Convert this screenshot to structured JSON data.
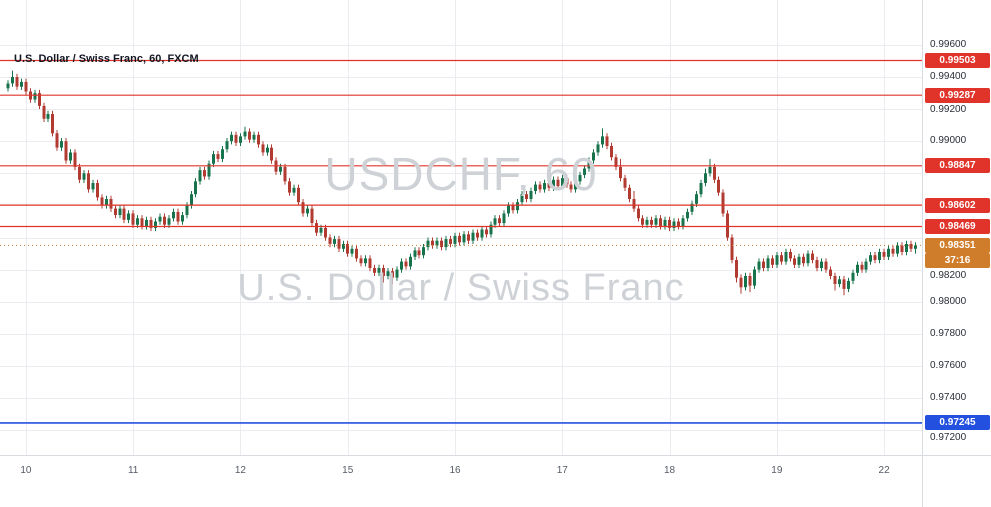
{
  "legend": {
    "text": "U.S. Dollar / Swiss Franc, 60, FXCM"
  },
  "watermark": {
    "line1": "USDCHF, 60",
    "line2": "U.S. Dollar / Swiss Franc"
  },
  "colors": {
    "up_candle": "#17734b",
    "down_candle": "#b23b31",
    "grid": "#ececf0",
    "resistance_line": "#e0342b",
    "support_line": "#2450e0",
    "current_price": "#cf7d2a",
    "axis_text": "#2a2e39"
  },
  "chart_data": {
    "type": "candlestick",
    "symbol": "USDCHF",
    "interval": "60",
    "exchange": "FXCM",
    "title": "U.S. Dollar / Swiss Franc, 60, FXCM",
    "price_axis": {
      "min": 0.97045,
      "max": 0.9988,
      "grid_start": 0.996,
      "grid_step": 0.002,
      "grid_end": 0.972,
      "ticks": [
        0.996,
        0.994,
        0.992,
        0.99,
        0.982,
        0.98,
        0.978,
        0.976,
        0.974,
        0.972
      ]
    },
    "time_axis": {
      "labels": [
        "10",
        "11",
        "12",
        "15",
        "16",
        "17",
        "18",
        "19",
        "22"
      ],
      "indices": [
        4,
        28,
        52,
        76,
        100,
        124,
        148,
        172,
        196
      ]
    },
    "levels": [
      {
        "price": 0.99503,
        "kind": "resistance"
      },
      {
        "price": 0.99287,
        "kind": "resistance"
      },
      {
        "price": 0.98847,
        "kind": "resistance"
      },
      {
        "price": 0.98602,
        "kind": "resistance"
      },
      {
        "price": 0.98469,
        "kind": "resistance"
      },
      {
        "price": 0.97245,
        "kind": "support"
      }
    ],
    "last_price": {
      "value": 0.98351,
      "countdown": "37:16"
    },
    "candles": [
      [
        0.9933,
        0.9938,
        0.9931,
        0.9936
      ],
      [
        0.9936,
        0.9944,
        0.9934,
        0.994
      ],
      [
        0.994,
        0.9942,
        0.9932,
        0.9934
      ],
      [
        0.9934,
        0.9939,
        0.9932,
        0.9937
      ],
      [
        0.9937,
        0.9939,
        0.9929,
        0.9931
      ],
      [
        0.9931,
        0.9933,
        0.9924,
        0.9926
      ],
      [
        0.9926,
        0.9932,
        0.9924,
        0.993
      ],
      [
        0.993,
        0.9932,
        0.992,
        0.9922
      ],
      [
        0.9922,
        0.9924,
        0.9912,
        0.9914
      ],
      [
        0.9914,
        0.9919,
        0.9912,
        0.9917
      ],
      [
        0.9917,
        0.9919,
        0.9903,
        0.9905
      ],
      [
        0.9905,
        0.9907,
        0.9894,
        0.9896
      ],
      [
        0.9896,
        0.9902,
        0.9894,
        0.99
      ],
      [
        0.99,
        0.9902,
        0.9886,
        0.9888
      ],
      [
        0.9888,
        0.9895,
        0.9886,
        0.9893
      ],
      [
        0.9893,
        0.9895,
        0.9882,
        0.9884
      ],
      [
        0.9884,
        0.9886,
        0.9874,
        0.9876
      ],
      [
        0.9876,
        0.9882,
        0.9874,
        0.988
      ],
      [
        0.988,
        0.9882,
        0.9868,
        0.987
      ],
      [
        0.987,
        0.9876,
        0.9868,
        0.9874
      ],
      [
        0.9874,
        0.9876,
        0.9863,
        0.9865
      ],
      [
        0.9865,
        0.9867,
        0.9858,
        0.986
      ],
      [
        0.986,
        0.9866,
        0.9858,
        0.9864
      ],
      [
        0.9864,
        0.9866,
        0.9856,
        0.9858
      ],
      [
        0.9858,
        0.986,
        0.9852,
        0.9854
      ],
      [
        0.9854,
        0.986,
        0.9852,
        0.9858
      ],
      [
        0.9858,
        0.986,
        0.9849,
        0.9851
      ],
      [
        0.9851,
        0.9857,
        0.9849,
        0.9855
      ],
      [
        0.9855,
        0.9857,
        0.9846,
        0.9848
      ],
      [
        0.9848,
        0.9854,
        0.9846,
        0.9852
      ],
      [
        0.9852,
        0.9854,
        0.9845,
        0.9847
      ],
      [
        0.9847,
        0.9853,
        0.9845,
        0.9851
      ],
      [
        0.9851,
        0.9853,
        0.9844,
        0.9846
      ],
      [
        0.9846,
        0.9852,
        0.9844,
        0.985
      ],
      [
        0.985,
        0.9855,
        0.9848,
        0.9853
      ],
      [
        0.9853,
        0.9855,
        0.9846,
        0.9848
      ],
      [
        0.9848,
        0.9854,
        0.9846,
        0.9852
      ],
      [
        0.9852,
        0.9858,
        0.985,
        0.9856
      ],
      [
        0.9856,
        0.9858,
        0.9848,
        0.985
      ],
      [
        0.985,
        0.9856,
        0.9848,
        0.9854
      ],
      [
        0.9854,
        0.9862,
        0.9852,
        0.986
      ],
      [
        0.986,
        0.9869,
        0.9858,
        0.9867
      ],
      [
        0.9867,
        0.9877,
        0.9865,
        0.9875
      ],
      [
        0.9875,
        0.9884,
        0.9873,
        0.9882
      ],
      [
        0.9882,
        0.9884,
        0.9876,
        0.9878
      ],
      [
        0.9878,
        0.9888,
        0.9876,
        0.9886
      ],
      [
        0.9886,
        0.9894,
        0.9884,
        0.9892
      ],
      [
        0.9892,
        0.9894,
        0.9887,
        0.9889
      ],
      [
        0.9889,
        0.9897,
        0.9887,
        0.9895
      ],
      [
        0.9895,
        0.9902,
        0.9893,
        0.99
      ],
      [
        0.99,
        0.9906,
        0.9898,
        0.9904
      ],
      [
        0.9904,
        0.9906,
        0.9897,
        0.9899
      ],
      [
        0.9899,
        0.9905,
        0.9897,
        0.9903
      ],
      [
        0.9903,
        0.9909,
        0.9901,
        0.9906
      ],
      [
        0.9906,
        0.9908,
        0.9899,
        0.9901
      ],
      [
        0.9901,
        0.9906,
        0.9899,
        0.9904
      ],
      [
        0.9904,
        0.9906,
        0.9896,
        0.9898
      ],
      [
        0.9898,
        0.99,
        0.9891,
        0.9893
      ],
      [
        0.9893,
        0.9898,
        0.9891,
        0.9896
      ],
      [
        0.9896,
        0.9898,
        0.9886,
        0.9888
      ],
      [
        0.9888,
        0.989,
        0.9879,
        0.9881
      ],
      [
        0.9881,
        0.9886,
        0.9879,
        0.9884
      ],
      [
        0.9884,
        0.9886,
        0.9873,
        0.9875
      ],
      [
        0.9875,
        0.9877,
        0.9866,
        0.9868
      ],
      [
        0.9868,
        0.9873,
        0.9866,
        0.9871
      ],
      [
        0.9871,
        0.9873,
        0.986,
        0.9862
      ],
      [
        0.9862,
        0.9864,
        0.9853,
        0.9855
      ],
      [
        0.9855,
        0.986,
        0.9853,
        0.9858
      ],
      [
        0.9858,
        0.986,
        0.9847,
        0.9849
      ],
      [
        0.9849,
        0.9851,
        0.9841,
        0.9843
      ],
      [
        0.9843,
        0.9848,
        0.9841,
        0.9846
      ],
      [
        0.9846,
        0.9848,
        0.9838,
        0.984
      ],
      [
        0.984,
        0.9842,
        0.9834,
        0.9836
      ],
      [
        0.9836,
        0.9841,
        0.9834,
        0.9839
      ],
      [
        0.9839,
        0.9841,
        0.9831,
        0.9833
      ],
      [
        0.9833,
        0.9838,
        0.9831,
        0.9836
      ],
      [
        0.9836,
        0.9838,
        0.9828,
        0.983
      ],
      [
        0.983,
        0.9835,
        0.9828,
        0.9833
      ],
      [
        0.9833,
        0.9835,
        0.9825,
        0.9827
      ],
      [
        0.9827,
        0.9829,
        0.9822,
        0.9824
      ],
      [
        0.9824,
        0.9829,
        0.9822,
        0.9827
      ],
      [
        0.9827,
        0.9829,
        0.9819,
        0.9821
      ],
      [
        0.9821,
        0.9823,
        0.9816,
        0.9818
      ],
      [
        0.9818,
        0.9823,
        0.9816,
        0.9821
      ],
      [
        0.9821,
        0.9823,
        0.9812,
        0.9816
      ],
      [
        0.9816,
        0.9821,
        0.9814,
        0.9819
      ],
      [
        0.9819,
        0.9821,
        0.9811,
        0.9815
      ],
      [
        0.9815,
        0.9822,
        0.9813,
        0.982
      ],
      [
        0.982,
        0.9827,
        0.9818,
        0.9825
      ],
      [
        0.9825,
        0.9827,
        0.982,
        0.9822
      ],
      [
        0.9822,
        0.983,
        0.982,
        0.9828
      ],
      [
        0.9828,
        0.9834,
        0.9826,
        0.9832
      ],
      [
        0.9832,
        0.9834,
        0.9827,
        0.9829
      ],
      [
        0.9829,
        0.9836,
        0.9827,
        0.9834
      ],
      [
        0.9834,
        0.984,
        0.9832,
        0.9838
      ],
      [
        0.9838,
        0.984,
        0.9833,
        0.9835
      ],
      [
        0.9835,
        0.984,
        0.9833,
        0.9838
      ],
      [
        0.9838,
        0.984,
        0.9832,
        0.9834
      ],
      [
        0.9834,
        0.9841,
        0.9832,
        0.9839
      ],
      [
        0.9839,
        0.9841,
        0.9834,
        0.9836
      ],
      [
        0.9836,
        0.9843,
        0.9834,
        0.9841
      ],
      [
        0.9841,
        0.9843,
        0.9835,
        0.9837
      ],
      [
        0.9837,
        0.9844,
        0.9835,
        0.9842
      ],
      [
        0.9842,
        0.9844,
        0.9836,
        0.9838
      ],
      [
        0.9838,
        0.9845,
        0.9836,
        0.9843
      ],
      [
        0.9843,
        0.9845,
        0.9838,
        0.984
      ],
      [
        0.984,
        0.9847,
        0.9838,
        0.9845
      ],
      [
        0.9845,
        0.9847,
        0.984,
        0.9842
      ],
      [
        0.9842,
        0.985,
        0.984,
        0.9848
      ],
      [
        0.9848,
        0.9854,
        0.9846,
        0.9852
      ],
      [
        0.9852,
        0.9854,
        0.9847,
        0.9849
      ],
      [
        0.9849,
        0.9857,
        0.9847,
        0.9855
      ],
      [
        0.9855,
        0.9862,
        0.9853,
        0.986
      ],
      [
        0.986,
        0.9862,
        0.9855,
        0.9857
      ],
      [
        0.9857,
        0.9864,
        0.9855,
        0.9862
      ],
      [
        0.9862,
        0.9869,
        0.986,
        0.9867
      ],
      [
        0.9867,
        0.9869,
        0.9862,
        0.9864
      ],
      [
        0.9864,
        0.9871,
        0.9862,
        0.9869
      ],
      [
        0.9869,
        0.9875,
        0.9867,
        0.9873
      ],
      [
        0.9873,
        0.9875,
        0.9868,
        0.987
      ],
      [
        0.987,
        0.9876,
        0.9868,
        0.9874
      ],
      [
        0.9874,
        0.9876,
        0.9869,
        0.9871
      ],
      [
        0.9871,
        0.9878,
        0.9869,
        0.9876
      ],
      [
        0.9876,
        0.9878,
        0.987,
        0.9872
      ],
      [
        0.9872,
        0.9879,
        0.987,
        0.9877
      ],
      [
        0.9877,
        0.9879,
        0.9871,
        0.9873
      ],
      [
        0.9873,
        0.9875,
        0.9868,
        0.987
      ],
      [
        0.987,
        0.9877,
        0.9868,
        0.9875
      ],
      [
        0.9875,
        0.9881,
        0.9873,
        0.9879
      ],
      [
        0.9879,
        0.9885,
        0.9877,
        0.9883
      ],
      [
        0.9883,
        0.989,
        0.9881,
        0.9888
      ],
      [
        0.9888,
        0.9895,
        0.9886,
        0.9893
      ],
      [
        0.9893,
        0.99,
        0.9891,
        0.9898
      ],
      [
        0.9898,
        0.9908,
        0.9896,
        0.9903
      ],
      [
        0.9903,
        0.9905,
        0.9895,
        0.9897
      ],
      [
        0.9897,
        0.9899,
        0.9888,
        0.989
      ],
      [
        0.989,
        0.9892,
        0.9882,
        0.9884
      ],
      [
        0.9884,
        0.9889,
        0.9875,
        0.9877
      ],
      [
        0.9877,
        0.9879,
        0.9869,
        0.9871
      ],
      [
        0.9871,
        0.9873,
        0.9862,
        0.9864
      ],
      [
        0.9864,
        0.9869,
        0.9856,
        0.9858
      ],
      [
        0.9858,
        0.986,
        0.985,
        0.9852
      ],
      [
        0.9852,
        0.9854,
        0.9846,
        0.9848
      ],
      [
        0.9848,
        0.9853,
        0.9846,
        0.9851
      ],
      [
        0.9851,
        0.9853,
        0.9846,
        0.9848
      ],
      [
        0.9848,
        0.9854,
        0.9846,
        0.9852
      ],
      [
        0.9852,
        0.9854,
        0.9845,
        0.9847
      ],
      [
        0.9847,
        0.9853,
        0.9845,
        0.9851
      ],
      [
        0.9851,
        0.9853,
        0.9844,
        0.9846
      ],
      [
        0.9846,
        0.9852,
        0.9844,
        0.985
      ],
      [
        0.985,
        0.9852,
        0.9845,
        0.9847
      ],
      [
        0.9847,
        0.9854,
        0.9845,
        0.9852
      ],
      [
        0.9852,
        0.9858,
        0.985,
        0.9856
      ],
      [
        0.9856,
        0.9863,
        0.9854,
        0.9861
      ],
      [
        0.9861,
        0.9869,
        0.9859,
        0.9867
      ],
      [
        0.9867,
        0.9876,
        0.9865,
        0.9874
      ],
      [
        0.9874,
        0.9883,
        0.9872,
        0.988
      ],
      [
        0.988,
        0.9889,
        0.9878,
        0.9884
      ],
      [
        0.9884,
        0.9886,
        0.9874,
        0.9876
      ],
      [
        0.9876,
        0.9878,
        0.9866,
        0.9868
      ],
      [
        0.9868,
        0.987,
        0.9853,
        0.9855
      ],
      [
        0.9855,
        0.9857,
        0.9838,
        0.984
      ],
      [
        0.984,
        0.9842,
        0.9824,
        0.9826
      ],
      [
        0.9826,
        0.9828,
        0.9812,
        0.9815
      ],
      [
        0.9815,
        0.9817,
        0.9805,
        0.9809
      ],
      [
        0.9809,
        0.9818,
        0.9807,
        0.9816
      ],
      [
        0.9816,
        0.9818,
        0.9806,
        0.981
      ],
      [
        0.981,
        0.9822,
        0.9808,
        0.982
      ],
      [
        0.982,
        0.9827,
        0.9818,
        0.9825
      ],
      [
        0.9825,
        0.9827,
        0.9819,
        0.9821
      ],
      [
        0.9821,
        0.9829,
        0.9819,
        0.9827
      ],
      [
        0.9827,
        0.9829,
        0.9821,
        0.9823
      ],
      [
        0.9823,
        0.9831,
        0.9821,
        0.9829
      ],
      [
        0.9829,
        0.9831,
        0.9823,
        0.9825
      ],
      [
        0.9825,
        0.9833,
        0.9823,
        0.9831
      ],
      [
        0.9831,
        0.9833,
        0.9825,
        0.9827
      ],
      [
        0.9827,
        0.9829,
        0.9821,
        0.9823
      ],
      [
        0.9823,
        0.983,
        0.9821,
        0.9828
      ],
      [
        0.9828,
        0.983,
        0.9822,
        0.9824
      ],
      [
        0.9824,
        0.9832,
        0.9822,
        0.983
      ],
      [
        0.983,
        0.9832,
        0.9824,
        0.9826
      ],
      [
        0.9826,
        0.9828,
        0.9819,
        0.9821
      ],
      [
        0.9821,
        0.9827,
        0.9819,
        0.9825
      ],
      [
        0.9825,
        0.9827,
        0.9818,
        0.982
      ],
      [
        0.982,
        0.9822,
        0.9814,
        0.9816
      ],
      [
        0.9816,
        0.9818,
        0.9807,
        0.9811
      ],
      [
        0.9811,
        0.9816,
        0.9809,
        0.9814
      ],
      [
        0.9814,
        0.9816,
        0.9804,
        0.9808
      ],
      [
        0.9808,
        0.9815,
        0.9806,
        0.9813
      ],
      [
        0.9813,
        0.982,
        0.9811,
        0.9818
      ],
      [
        0.9818,
        0.9825,
        0.9816,
        0.9823
      ],
      [
        0.9823,
        0.9825,
        0.9818,
        0.982
      ],
      [
        0.982,
        0.9827,
        0.9818,
        0.9825
      ],
      [
        0.9825,
        0.9831,
        0.9823,
        0.9829
      ],
      [
        0.9829,
        0.9831,
        0.9824,
        0.9826
      ],
      [
        0.9826,
        0.9833,
        0.9824,
        0.9831
      ],
      [
        0.9831,
        0.9833,
        0.9826,
        0.9828
      ],
      [
        0.9828,
        0.9835,
        0.9826,
        0.9833
      ],
      [
        0.9833,
        0.9835,
        0.9828,
        0.983
      ],
      [
        0.983,
        0.9837,
        0.9828,
        0.9835
      ],
      [
        0.9835,
        0.9837,
        0.9829,
        0.9831
      ],
      [
        0.9831,
        0.9838,
        0.9829,
        0.9836
      ],
      [
        0.9836,
        0.9838,
        0.9831,
        0.9833
      ],
      [
        0.9833,
        0.9837,
        0.983,
        0.98351
      ]
    ]
  }
}
